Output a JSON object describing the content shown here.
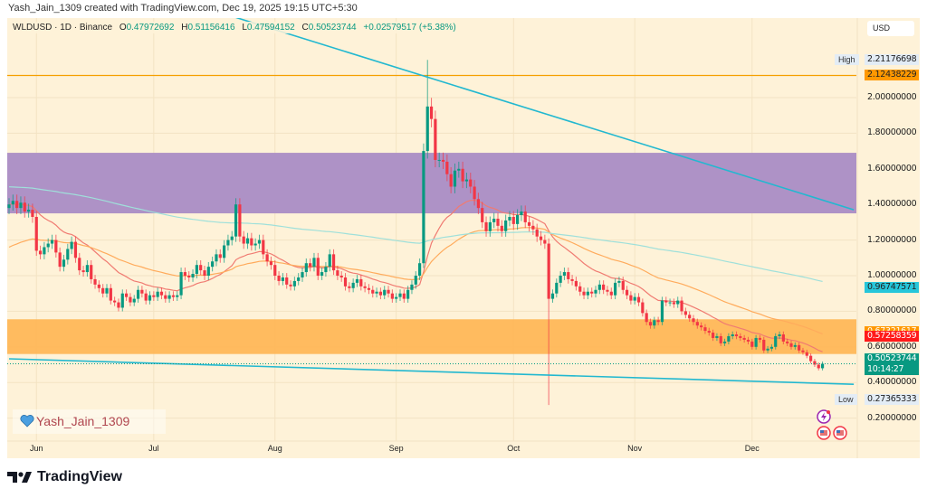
{
  "credit": "Yash_Jain_1309 created with TradingView.com, Dec 19, 2025 19:15 UTC+5:30",
  "legend": {
    "symbol": "WLDUSD · 1D · Binance",
    "o_label": "O",
    "o": "0.47972692",
    "h_label": "H",
    "h": "0.51156416",
    "l_label": "L",
    "l": "0.47594152",
    "c_label": "C",
    "c": "0.50523744",
    "change": "+0.02579517 (+5.38%)"
  },
  "currency": "USD",
  "watermark": "Yash_Jain_1309",
  "brand": "TradingView",
  "colors": {
    "up": "#089981",
    "down": "#f23645",
    "ma_fast": "#f07b72",
    "ma_mid": "#ffab5c",
    "ma_slow": "#9fe0da",
    "trendline": "#22b8d0",
    "resistance_zone": "#ae92c6",
    "support_zone": "#ffb552",
    "level_line": "#f5a000",
    "background": "#fef2d8"
  },
  "price_labels": {
    "high_label": "High",
    "high": "2.21176698",
    "level": "2.12438229",
    "ma_slow": "0.96747571",
    "ma_mid": "0.67321617",
    "ma_fast": "0.57258359",
    "last": "0.50523744",
    "countdown": "10:14:27",
    "low_label": "Low",
    "low": "0.27365333"
  },
  "chart_data": {
    "type": "candlestick",
    "symbol": "WLDUSD",
    "interval": "1D",
    "x_range": [
      "2025-05-25",
      "2025-12-19"
    ],
    "ylim": [
      0.1,
      2.5
    ],
    "yticks": [
      "2.00000000",
      "1.80000000",
      "1.60000000",
      "1.40000000",
      "1.20000000",
      "1.00000000",
      "0.80000000",
      "0.60000000",
      "0.40000000",
      "0.20000000"
    ],
    "ytick_values": [
      2.0,
      1.8,
      1.6,
      1.4,
      1.2,
      1.0,
      0.8,
      0.6,
      0.4,
      0.2
    ],
    "xticks": [
      {
        "label": "Jun",
        "date": "2025-06-01"
      },
      {
        "label": "Jul",
        "date": "2025-07-01"
      },
      {
        "label": "Aug",
        "date": "2025-08-01"
      },
      {
        "label": "Sep",
        "date": "2025-09-01"
      },
      {
        "label": "Oct",
        "date": "2025-10-01"
      },
      {
        "label": "Nov",
        "date": "2025-11-01"
      },
      {
        "label": "Dec",
        "date": "2025-12-01"
      }
    ],
    "grid": true,
    "close": [
      1.4,
      1.42,
      1.38,
      1.41,
      1.36,
      1.37,
      1.33,
      1.14,
      1.12,
      1.16,
      1.18,
      1.2,
      1.13,
      1.05,
      1.09,
      1.15,
      1.19,
      1.1,
      1.03,
      1.02,
      1.06,
      0.98,
      0.95,
      0.93,
      0.9,
      0.93,
      0.86,
      0.85,
      0.82,
      0.9,
      0.88,
      0.85,
      0.87,
      0.92,
      0.9,
      0.86,
      0.89,
      0.88,
      0.91,
      0.89,
      0.87,
      0.89,
      0.88,
      0.89,
      1.02,
      1.0,
      0.99,
      1.01,
      1.06,
      1.03,
      1.0,
      1.05,
      1.08,
      1.12,
      1.1,
      1.17,
      1.2,
      1.22,
      1.4,
      1.22,
      1.18,
      1.21,
      1.17,
      1.18,
      1.2,
      1.12,
      1.08,
      1.06,
      1.0,
      0.97,
      0.99,
      0.95,
      0.94,
      0.97,
      0.99,
      1.02,
      1.07,
      1.05,
      1.1,
      1.0,
      1.02,
      1.05,
      1.12,
      1.03,
      1.0,
      0.99,
      0.94,
      0.93,
      0.96,
      0.98,
      0.94,
      0.93,
      0.92,
      0.9,
      0.91,
      0.89,
      0.92,
      0.9,
      0.87,
      0.88,
      0.9,
      0.87,
      0.92,
      0.95,
      1.0,
      1.07,
      1.7,
      1.95,
      1.88,
      1.65,
      1.65,
      1.64,
      1.57,
      1.5,
      1.59,
      1.6,
      1.53,
      1.54,
      1.5,
      1.43,
      1.38,
      1.3,
      1.25,
      1.3,
      1.32,
      1.28,
      1.25,
      1.31,
      1.33,
      1.29,
      1.34,
      1.36,
      1.3,
      1.28,
      1.26,
      1.22,
      1.2,
      1.18,
      0.87,
      0.9,
      0.96,
      1.0,
      1.02,
      0.98,
      0.97,
      0.94,
      0.91,
      0.89,
      0.91,
      0.9,
      0.92,
      0.95,
      0.92,
      0.91,
      0.89,
      0.96,
      0.97,
      0.92,
      0.89,
      0.86,
      0.88,
      0.85,
      0.79,
      0.74,
      0.72,
      0.75,
      0.74,
      0.86,
      0.85,
      0.85,
      0.84,
      0.86,
      0.8,
      0.78,
      0.76,
      0.74,
      0.72,
      0.71,
      0.69,
      0.68,
      0.65,
      0.66,
      0.62,
      0.63,
      0.66,
      0.67,
      0.66,
      0.65,
      0.64,
      0.63,
      0.6,
      0.65,
      0.64,
      0.58,
      0.59,
      0.6,
      0.66,
      0.67,
      0.63,
      0.62,
      0.6,
      0.61,
      0.58,
      0.57,
      0.55,
      0.52,
      0.5,
      0.48,
      0.50523744
    ],
    "extremes": {
      "high": {
        "date": "2025-09-09",
        "value": 2.21176698
      },
      "low": {
        "date": "2025-10-10",
        "value": 0.27365333
      }
    },
    "moving_averages": [
      {
        "color_key": "ma_fast",
        "last": 0.57258359
      },
      {
        "color_key": "ma_mid",
        "last": 0.67321617
      },
      {
        "color_key": "ma_slow",
        "last": 0.96747571
      }
    ],
    "zones": [
      {
        "name": "resistance",
        "from": 1.35,
        "to": 1.69,
        "color_key": "resistance_zone"
      },
      {
        "name": "support",
        "from": 0.56,
        "to": 0.755,
        "color_key": "support_zone"
      }
    ],
    "horizontal_lines": [
      {
        "value": 2.12438229,
        "color_key": "level_line"
      }
    ],
    "trendlines": [
      {
        "start": {
          "date": "2025-07-22",
          "value": 2.45
        },
        "end": {
          "date": "2025-12-27",
          "value": 1.37
        }
      },
      {
        "start": {
          "date": "2025-05-25",
          "value": 0.533
        },
        "end": {
          "date": "2025-12-27",
          "value": 0.39
        }
      }
    ],
    "last_price": 0.50523744
  }
}
